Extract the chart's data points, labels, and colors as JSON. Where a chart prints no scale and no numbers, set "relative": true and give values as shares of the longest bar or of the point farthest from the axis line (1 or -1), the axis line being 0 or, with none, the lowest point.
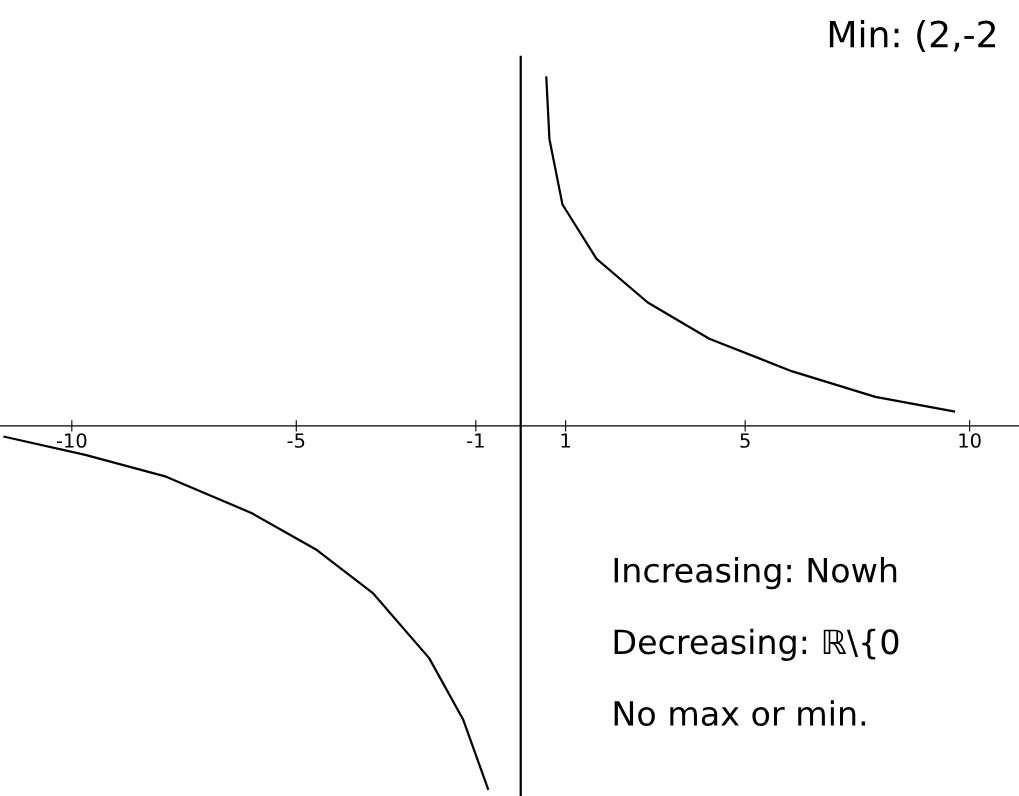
{
  "chart_data": {
    "type": "line",
    "relative": true,
    "title": "Min: (2,-2",
    "series": [
      {
        "color": "#000000",
        "x": [
          0.57,
          0.64,
          0.93,
          1.69,
          2.83,
          4.2,
          6.05,
          7.9,
          9.65
        ],
        "values": [
          0.96,
          0.79,
          0.61,
          0.46,
          0.34,
          0.24,
          0.15,
          0.08,
          0.04
        ]
      },
      {
        "color": "#000000",
        "x": [
          -11.5,
          -9.7,
          -7.9,
          -6,
          -4.57,
          -3.3,
          -2.04,
          -1.28,
          -0.73
        ],
        "values": [
          -0.03,
          -0.08,
          -0.14,
          -0.24,
          -0.34,
          -0.46,
          -0.64,
          -0.81,
          -1.0
        ]
      }
    ],
    "xlim": [
      -11.6,
      11.1
    ],
    "xticks": [
      -10,
      -5,
      -1,
      1,
      5,
      10
    ],
    "ref_lines": [
      {
        "axis": "x",
        "value": 0,
        "color": "#000000"
      }
    ],
    "annotations": [
      "Increasing: Nowh",
      "Decreasing: ℝ\\{0",
      "No max or min."
    ],
    "grid": false,
    "legend": false,
    "marker": "none",
    "line_style": "solid"
  }
}
